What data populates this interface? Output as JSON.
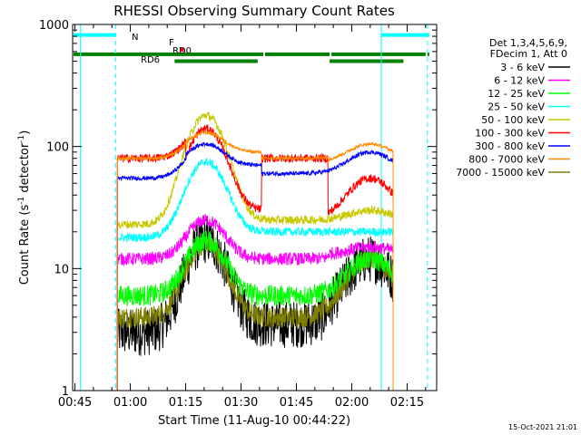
{
  "chart_data": {
    "type": "line",
    "title": "RHESSI Observing Summary Count Rates",
    "xlabel": "Start Time (11-Aug-10 00:44:22)",
    "ylabel": "Count Rate (s-1 detector-1)",
    "ylabel_parts": {
      "base": "Count Rate (s",
      "exp1": "-1",
      "mid": " detector",
      "exp2": "-1",
      "end": ")"
    },
    "yscale": "log",
    "ylim": [
      1,
      1000
    ],
    "xlim": [
      "00:44:22",
      "02:23:00"
    ],
    "x_unit": "minutes after 00:00 UT",
    "x_ticks": [
      {
        "t": 45,
        "label": "00:45"
      },
      {
        "t": 60,
        "label": "01:00"
      },
      {
        "t": 75,
        "label": "01:15"
      },
      {
        "t": 90,
        "label": "01:30"
      },
      {
        "t": 105,
        "label": "01:45"
      },
      {
        "t": 120,
        "label": "02:00"
      },
      {
        "t": 135,
        "label": "02:15"
      }
    ],
    "y_ticks": [
      {
        "v": 1,
        "label": "1"
      },
      {
        "v": 10,
        "label": "10"
      },
      {
        "v": 100,
        "label": "100"
      },
      {
        "v": 1000,
        "label": "1000"
      }
    ],
    "legend_header": [
      "Det 1,3,4,5,6,9,",
      "FDecim 1, Att 0"
    ],
    "series": [
      {
        "name": "3 - 6 keV",
        "color": "#000000"
      },
      {
        "name": "6 - 12 keV",
        "color": "#ff00ff"
      },
      {
        "name": "12 - 25 keV",
        "color": "#00ff00"
      },
      {
        "name": "25 - 50 keV",
        "color": "#00ffff"
      },
      {
        "name": "50 - 100 keV",
        "color": "#c8c800"
      },
      {
        "name": "100 - 300 keV",
        "color": "#ff0000"
      },
      {
        "name": "300 - 800 keV",
        "color": "#0000ff"
      },
      {
        "name": "800 - 7000 keV",
        "color": "#ff8c00"
      },
      {
        "name": "7000 - 15000 keV",
        "color": "#808000"
      }
    ],
    "model": {
      "segments": [
        [
          56.5,
          75.0
        ],
        [
          75.0,
          95.5
        ],
        [
          95.5,
          113.5
        ],
        [
          113.5,
          131.2
        ]
      ],
      "base": {
        "3 - 6 keV": [
          3.0,
          3.5,
          3.5,
          4.0
        ],
        "6 - 12 keV": [
          12,
          12,
          12,
          13
        ],
        "12 - 25 keV": [
          6,
          6,
          6,
          6
        ],
        "25 - 50 keV": [
          18,
          20,
          20,
          20
        ],
        "50 - 100 keV": [
          23,
          25,
          25,
          25
        ],
        "100 - 300 keV": [
          80,
          30,
          80,
          25
        ],
        "300 - 800 keV": [
          55,
          70,
          60,
          60
        ],
        "800 - 7000 keV": [
          80,
          90,
          80,
          75
        ],
        "7000 - 15000 keV": [
          4.0,
          4.0,
          4.0,
          4.0
        ]
      },
      "peaks": [
        {
          "t": 80.5,
          "w": 4.5,
          "v": {
            "3 - 6 keV": 17,
            "6 - 12 keV": 25,
            "12 - 25 keV": 17,
            "25 - 50 keV": 75,
            "50 - 100 keV": 180,
            "100 - 300 keV": 140,
            "300 - 800 keV": 105,
            "800 - 7000 keV": 130,
            "7000 - 15000 keV": 16
          }
        },
        {
          "t": 125.0,
          "w": 5.5,
          "v": {
            "3 - 6 keV": 12,
            "6 - 12 keV": 15,
            "12 - 25 keV": 12,
            "25 - 50 keV": 13,
            "50 - 100 keV": 30,
            "100 - 300 keV": 55,
            "300 - 800 keV": 90,
            "800 - 7000 keV": 105,
            "7000 - 15000 keV": 12
          }
        }
      ],
      "noise": {
        "3 - 6 keV": 0.45,
        "6 - 12 keV": 0.12,
        "12 - 25 keV": 0.2,
        "25 - 50 keV": 0.08,
        "50 - 100 keV": 0.08,
        "100 - 300 keV": 0.08,
        "300 - 800 keV": 0.04,
        "800 - 7000 keV": 0.03,
        "7000 - 15000 keV": 0.2
      }
    },
    "flag_bars": [
      {
        "label": "N",
        "color": "#00ffff",
        "y": 820,
        "ranges": [
          [
            44.4,
            56.0
          ],
          [
            128.0,
            141.0
          ]
        ]
      },
      {
        "label": "F",
        "color": "#ff0000",
        "y": 620,
        "ranges": [
          [
            73.5,
            74.5
          ]
        ]
      },
      {
        "label": "RD0",
        "color": "#008000",
        "y": 570,
        "ranges": [
          [
            44.4,
            141.0
          ]
        ],
        "gaps": [
          [
            96.0,
            96.5
          ],
          [
            114.0,
            114.5
          ],
          [
            140.0,
            140.5
          ]
        ]
      },
      {
        "label": "RD6",
        "color": "#008000",
        "y": 500,
        "ranges": [
          [
            72.0,
            94.5
          ],
          [
            114.0,
            134.0
          ]
        ]
      }
    ],
    "vlines": [
      {
        "t": 46.5,
        "style": "solid",
        "color": "#00ffff"
      },
      {
        "t": 56.0,
        "style": "dashed",
        "color": "#00ffff"
      },
      {
        "t": 128.0,
        "style": "solid",
        "color": "#00ffff"
      },
      {
        "t": 140.5,
        "style": "dashed",
        "color": "#00ffff"
      }
    ],
    "timestamp": "15-Oct-2021 21:01"
  }
}
